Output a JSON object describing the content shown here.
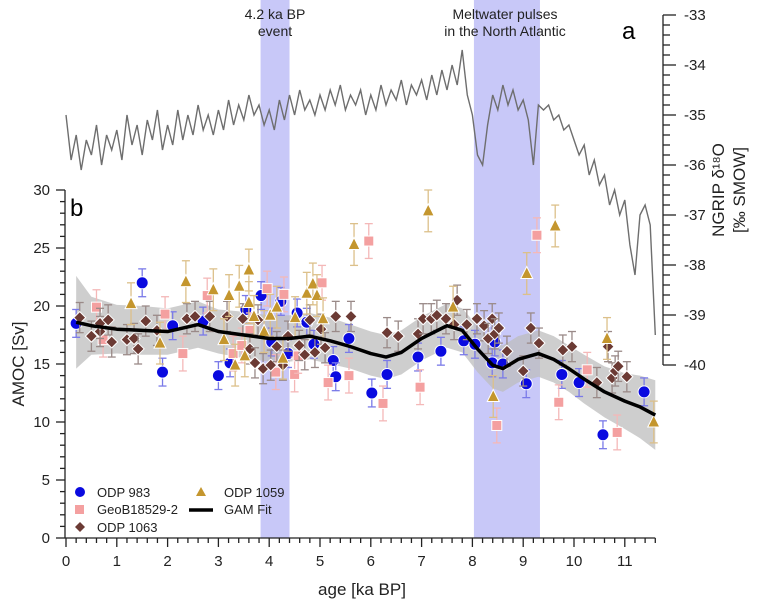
{
  "chart_data": {
    "type": "scatter",
    "panel_a": {
      "panel_label": "a",
      "y_label_line1": "NGRIP δ¹⁸O",
      "y_label_line2": "[‰ SMOW]",
      "ylim": [
        -40,
        -33
      ],
      "y_ticks": [
        "-33",
        "-34",
        "-35",
        "-36",
        "-37",
        "-38",
        "-39",
        "-40"
      ],
      "line_color": "#6e6e6e",
      "series": {
        "x_start": 0.0,
        "x_step": 0.1,
        "values": [
          -35.0,
          -35.9,
          -35.4,
          -36.1,
          -35.5,
          -35.8,
          -35.2,
          -36.0,
          -35.4,
          -35.7,
          -35.3,
          -35.9,
          -35.0,
          -35.6,
          -35.2,
          -35.8,
          -35.1,
          -35.5,
          -34.9,
          -35.7,
          -35.2,
          -35.6,
          -34.9,
          -35.5,
          -35.0,
          -35.4,
          -34.8,
          -35.3,
          -35.0,
          -35.4,
          -34.9,
          -35.3,
          -34.7,
          -35.2,
          -34.8,
          -35.1,
          -34.6,
          -35.0,
          -34.8,
          -35.2,
          -34.9,
          -35.3,
          -34.7,
          -35.1,
          -34.6,
          -35.0,
          -34.5,
          -34.9,
          -34.7,
          -35.0,
          -34.6,
          -34.9,
          -34.5,
          -34.8,
          -34.4,
          -34.9,
          -34.6,
          -34.8,
          -34.5,
          -35.0,
          -34.6,
          -34.9,
          -34.4,
          -34.8,
          -34.5,
          -34.7,
          -34.3,
          -34.8,
          -34.4,
          -34.6,
          -34.3,
          -34.7,
          -34.2,
          -34.6,
          -34.1,
          -34.5,
          -34.0,
          -34.4,
          -33.7,
          -34.6,
          -35.0,
          -35.8,
          -36.0,
          -35.2,
          -34.6,
          -34.9,
          -34.4,
          -34.8,
          -34.5,
          -34.9,
          -34.7,
          -35.1,
          -36.0,
          -34.8,
          -34.9,
          -34.8,
          -35.1,
          -35.0,
          -35.3,
          -35.2,
          -35.5,
          -35.8,
          -35.6,
          -36.2,
          -35.9,
          -36.4,
          -36.2,
          -36.8,
          -36.5,
          -37.0,
          -36.7,
          -37.6,
          -38.2,
          -37.0,
          -36.8,
          -37.2,
          -39.4
        ]
      }
    },
    "panel_b": {
      "panel_label": "b",
      "xlabel": "age [ka BP]",
      "ylabel": "AMOC [Sv]",
      "xlim": [
        0,
        11.6
      ],
      "ylim": [
        0,
        30
      ],
      "x_ticks": [
        "0",
        "1",
        "2",
        "3",
        "4",
        "5",
        "6",
        "7",
        "8",
        "9",
        "10",
        "11"
      ],
      "y_ticks": [
        "0",
        "5",
        "10",
        "15",
        "20",
        "25",
        "30"
      ],
      "grid": false,
      "legend_position": "bottom-left",
      "series": [
        {
          "name": "ODP 983",
          "marker": "circle",
          "color": "#0a0ae0",
          "error_color": "#7a7ae8",
          "error": 1.2,
          "points": [
            [
              0.2,
              18.5
            ],
            [
              1.5,
              22.0
            ],
            [
              1.9,
              14.3
            ],
            [
              2.1,
              18.3
            ],
            [
              2.7,
              18.7
            ],
            [
              3.0,
              14.0
            ],
            [
              3.23,
              15.1
            ],
            [
              3.54,
              19.7
            ],
            [
              3.84,
              20.9
            ],
            [
              4.05,
              16.9
            ],
            [
              4.23,
              20.4
            ],
            [
              4.37,
              15.9
            ],
            [
              4.55,
              19.4
            ],
            [
              4.74,
              18.6
            ],
            [
              4.88,
              16.7
            ],
            [
              5.26,
              15.3
            ],
            [
              5.31,
              13.9
            ],
            [
              5.57,
              17.2
            ],
            [
              6.02,
              12.5
            ],
            [
              6.32,
              14.1
            ],
            [
              6.93,
              15.6
            ],
            [
              7.38,
              16.1
            ],
            [
              7.83,
              17.0
            ],
            [
              8.05,
              16.7
            ],
            [
              8.39,
              15.1
            ],
            [
              8.44,
              16.9
            ],
            [
              8.6,
              15.0
            ],
            [
              9.06,
              13.3
            ],
            [
              9.76,
              14.1
            ],
            [
              10.1,
              13.4
            ],
            [
              10.57,
              8.9
            ],
            [
              11.38,
              12.6
            ]
          ]
        },
        {
          "name": "GeoB18529-2",
          "marker": "square",
          "color": "#f4a0a0",
          "error_color": "#f4b8b8",
          "error": 1.5,
          "points": [
            [
              0.6,
              19.9
            ],
            [
              0.73,
              17.1
            ],
            [
              1.95,
              19.3
            ],
            [
              2.3,
              15.9
            ],
            [
              2.78,
              20.9
            ],
            [
              3.29,
              15.9
            ],
            [
              3.46,
              16.6
            ],
            [
              3.62,
              17.9
            ],
            [
              3.96,
              21.5
            ],
            [
              4.13,
              14.3
            ],
            [
              4.29,
              21.0
            ],
            [
              4.5,
              14.1
            ],
            [
              4.57,
              15.7
            ],
            [
              5.04,
              22.0
            ],
            [
              5.16,
              13.4
            ],
            [
              5.57,
              14.0
            ],
            [
              5.96,
              25.6
            ],
            [
              6.24,
              11.6
            ],
            [
              6.97,
              13.0
            ],
            [
              8.48,
              9.7
            ],
            [
              9.27,
              26.1
            ],
            [
              9.7,
              11.7
            ],
            [
              10.26,
              14.5
            ],
            [
              10.85,
              9.1
            ]
          ]
        },
        {
          "name": "ODP 1063",
          "marker": "diamond",
          "color": "#6b3a34",
          "error_color": "#9a8a88",
          "error": 1.3,
          "points": [
            [
              0.27,
              19.0
            ],
            [
              0.5,
              17.4
            ],
            [
              0.67,
              17.8
            ],
            [
              0.67,
              18.5
            ],
            [
              0.83,
              18.8
            ],
            [
              0.9,
              16.9
            ],
            [
              1.2,
              17.1
            ],
            [
              1.34,
              17.2
            ],
            [
              1.42,
              16.3
            ],
            [
              1.57,
              18.7
            ],
            [
              1.79,
              17.9
            ],
            [
              2.38,
              18.9
            ],
            [
              2.54,
              19.1
            ],
            [
              2.83,
              19.1
            ],
            [
              3.17,
              19.1
            ],
            [
              3.48,
              18.9
            ],
            [
              3.62,
              16.3
            ],
            [
              3.72,
              15.1
            ],
            [
              3.78,
              18.8
            ],
            [
              3.88,
              14.6
            ],
            [
              4.03,
              14.9
            ],
            [
              4.15,
              16.5
            ],
            [
              4.27,
              14.9
            ],
            [
              4.37,
              17.4
            ],
            [
              4.59,
              16.6
            ],
            [
              4.7,
              15.8
            ],
            [
              4.8,
              18.8
            ],
            [
              4.9,
              16.0
            ],
            [
              5.02,
              18.0
            ],
            [
              5.1,
              16.4
            ],
            [
              5.31,
              19.1
            ],
            [
              5.61,
              19.1
            ],
            [
              6.32,
              17.7
            ],
            [
              6.54,
              17.4
            ],
            [
              6.93,
              17.6
            ],
            [
              7.03,
              18.9
            ],
            [
              7.19,
              18.9
            ],
            [
              7.3,
              19.2
            ],
            [
              7.48,
              18.9
            ],
            [
              7.64,
              18.4
            ],
            [
              7.7,
              20.5
            ],
            [
              7.89,
              18.4
            ],
            [
              8.09,
              18.9
            ],
            [
              8.23,
              18.3
            ],
            [
              8.31,
              17.2
            ],
            [
              8.39,
              18.9
            ],
            [
              8.44,
              17.6
            ],
            [
              8.52,
              18.1
            ],
            [
              8.68,
              16.1
            ],
            [
              9.0,
              14.4
            ],
            [
              9.15,
              18.1
            ],
            [
              9.31,
              16.8
            ],
            [
              9.78,
              16.2
            ],
            [
              9.96,
              16.5
            ],
            [
              10.45,
              13.4
            ],
            [
              10.67,
              16.5
            ],
            [
              10.75,
              13.8
            ],
            [
              10.81,
              14.4
            ],
            [
              10.87,
              14.8
            ],
            [
              11.04,
              13.9
            ]
          ]
        },
        {
          "name": "ODP 1059",
          "marker": "triangle",
          "color": "#c4962e",
          "error_color": "#dcc08a",
          "error": 1.8,
          "points": [
            [
              1.28,
              20.2
            ],
            [
              1.85,
              16.8
            ],
            [
              2.36,
              22.1
            ],
            [
              2.9,
              21.4
            ],
            [
              3.11,
              17.1
            ],
            [
              3.21,
              20.9
            ],
            [
              3.33,
              14.9
            ],
            [
              3.41,
              21.7
            ],
            [
              3.52,
              15.7
            ],
            [
              3.6,
              23.1
            ],
            [
              3.6,
              20.3
            ],
            [
              3.7,
              19.1
            ],
            [
              3.9,
              17.8
            ],
            [
              4.02,
              19.2
            ],
            [
              4.15,
              19.9
            ],
            [
              4.27,
              15.5
            ],
            [
              4.51,
              19.0
            ],
            [
              4.74,
              21.1
            ],
            [
              4.86,
              21.9
            ],
            [
              4.94,
              20.9
            ],
            [
              5.06,
              18.9
            ],
            [
              5.67,
              25.3
            ],
            [
              7.13,
              28.2
            ],
            [
              7.62,
              19.9
            ],
            [
              8.41,
              12.2
            ],
            [
              9.07,
              22.8
            ],
            [
              9.63,
              26.9
            ],
            [
              10.65,
              17.2
            ],
            [
              11.57,
              10.0
            ]
          ]
        }
      ],
      "gam_fit": {
        "name": "GAM Fit",
        "color": "#000000",
        "band_color": "#bdbdbd",
        "x": [
          0.2,
          0.5,
          1.0,
          1.5,
          2.0,
          2.6,
          3.0,
          3.5,
          4.0,
          4.4,
          4.8,
          5.2,
          5.6,
          6.0,
          6.3,
          6.6,
          7.0,
          7.5,
          7.8,
          8.1,
          8.4,
          8.6,
          8.9,
          9.3,
          9.6,
          9.9,
          10.2,
          10.6,
          11.0,
          11.3,
          11.6
        ],
        "y": [
          18.6,
          18.3,
          18.0,
          17.9,
          17.8,
          18.4,
          17.8,
          17.5,
          17.2,
          17.2,
          17.4,
          17.0,
          16.5,
          15.9,
          15.6,
          16.0,
          17.2,
          18.3,
          17.9,
          16.3,
          14.9,
          14.6,
          15.4,
          15.9,
          15.4,
          14.6,
          13.7,
          12.6,
          11.8,
          11.3,
          10.6
        ],
        "lower": [
          14.6,
          15.8,
          15.9,
          15.8,
          15.8,
          16.4,
          15.9,
          15.5,
          15.2,
          15.2,
          15.4,
          15.0,
          14.6,
          14.0,
          13.7,
          14.1,
          15.3,
          16.4,
          16.0,
          14.3,
          12.9,
          12.6,
          13.4,
          13.9,
          13.4,
          12.6,
          11.6,
          10.4,
          9.4,
          8.6,
          7.6
        ],
        "upper": [
          22.6,
          20.8,
          20.1,
          20.0,
          19.8,
          20.4,
          19.7,
          19.5,
          19.2,
          19.2,
          19.4,
          19.0,
          18.4,
          17.8,
          17.5,
          17.9,
          19.1,
          20.2,
          19.8,
          18.3,
          16.9,
          16.6,
          17.4,
          17.9,
          17.4,
          16.6,
          15.8,
          14.8,
          14.2,
          14.0,
          13.6
        ]
      },
      "shaded_intervals": [
        {
          "label_line1": "4.2 ka BP",
          "label_line2": "event",
          "start": 3.83,
          "end": 4.4,
          "color": "#c8c8f8"
        },
        {
          "label_line1": "Meltwater pulses",
          "label_line2": "in the North Atlantic",
          "start": 8.03,
          "end": 9.33,
          "color": "#c8c8f8"
        }
      ]
    }
  }
}
